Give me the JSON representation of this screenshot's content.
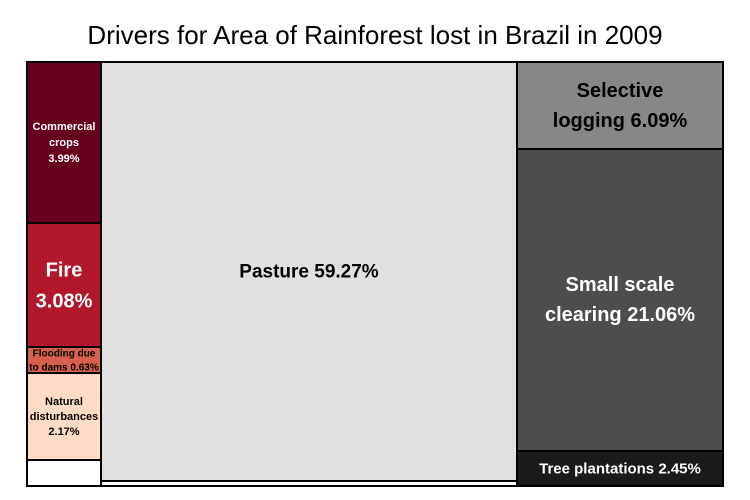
{
  "chart_data": {
    "type": "treemap",
    "title": "Drivers for Area of Rainforest lost in Brazil in 2009",
    "unit": "%",
    "items": [
      {
        "name": "Commercial crops",
        "value": 3.99,
        "label_lines": [
          "Commercial",
          "crops",
          "3.99%"
        ],
        "color": "#67001f",
        "text_color": "#ffffff"
      },
      {
        "name": "Fire",
        "value": 3.08,
        "label_lines": [
          "Fire",
          "3.08%"
        ],
        "color": "#b2182b",
        "text_color": "#ffffff"
      },
      {
        "name": "Flooding due to dams",
        "value": 0.63,
        "label_lines": [
          "Flooding due",
          "to dams 0.63%"
        ],
        "color": "#d6604d",
        "text_color": "#000000"
      },
      {
        "name": "Natural disturbances",
        "value": 2.17,
        "label_lines": [
          "Natural",
          "disturbances",
          "2.17%"
        ],
        "color": "#fddbc7",
        "text_color": "#000000"
      },
      {
        "name": "Pasture",
        "value": 59.27,
        "label_lines": [
          "Pasture 59.27%"
        ],
        "color": "#e0e0e0",
        "text_color": "#000000"
      },
      {
        "name": "Selective logging",
        "value": 6.09,
        "label_lines": [
          "Selective",
          "logging 6.09%"
        ],
        "color": "#878787",
        "text_color": "#000000"
      },
      {
        "name": "Small scale clearing",
        "value": 21.06,
        "label_lines": [
          "Small scale",
          "clearing 21.06%"
        ],
        "color": "#4d4d4d",
        "text_color": "#ffffff"
      },
      {
        "name": "Tree plantations",
        "value": 2.45,
        "label_lines": [
          "Tree plantations 2.45%"
        ],
        "color": "#1a1a1a",
        "text_color": "#ffffff"
      }
    ]
  }
}
